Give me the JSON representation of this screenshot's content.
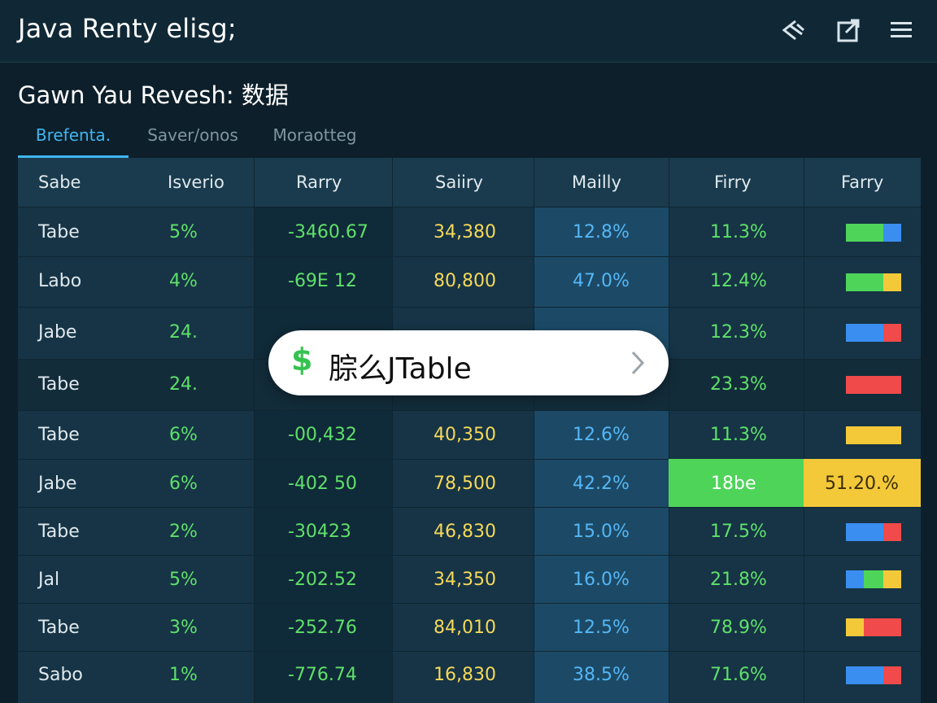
{
  "app": {
    "title": "Java Renty elisg;"
  },
  "topbar_icons": [
    "fast-forward-icon",
    "export-icon",
    "menu-icon"
  ],
  "page": {
    "title": "Gawn Yau Revesh: 数据"
  },
  "tabs": [
    {
      "label": "Brefenta.",
      "active": true
    },
    {
      "label": "Saver/onos",
      "active": false
    },
    {
      "label": "Moraotteg",
      "active": false
    }
  ],
  "table": {
    "headers": [
      "Sabe",
      "Isverio",
      "Rarry",
      "Saiiry",
      "Mailly",
      "Firry",
      "Farry"
    ],
    "rows": [
      {
        "c0": "Tabe",
        "c1": "5%",
        "c2": "-3460.67",
        "c3": "34,380",
        "c4": "12.8%",
        "c5": "11.3%"
      },
      {
        "c0": "Labo",
        "c1": "4%",
        "c2": "-69E 12",
        "c3": "80,800",
        "c4": "47.0%",
        "c5": "12.4%"
      },
      {
        "c0": "Jabe",
        "c1": "24.",
        "c2": "",
        "c3": "",
        "c4": "",
        "c5": "12.3%"
      },
      {
        "c0": "Tabe",
        "c1": "24.",
        "c2": "",
        "c3": "",
        "c4": "",
        "c5": "23.3%"
      },
      {
        "c0": "Tabe",
        "c1": "6%",
        "c2": "-00,432",
        "c3": "40,350",
        "c4": "12.6%",
        "c5": "11.3%"
      },
      {
        "c0": "Jabe",
        "c1": "6%",
        "c2": "-402 50",
        "c3": "78,500",
        "c4": "42.2%",
        "c5": "18be",
        "c6": "51.20.%"
      },
      {
        "c0": "Tabe",
        "c1": "2%",
        "c2": "-30423",
        "c3": "46,830",
        "c4": "15.0%",
        "c5": "17.5%"
      },
      {
        "c0": "Jal",
        "c1": "5%",
        "c2": "-202.52",
        "c3": "34,350",
        "c4": "16.0%",
        "c5": "21.8%"
      },
      {
        "c0": "Tabe",
        "c1": "3%",
        "c2": "-252.76",
        "c3": "84,010",
        "c4": "12.5%",
        "c5": "78.9%"
      },
      {
        "c0": "Sabo",
        "c1": "1%",
        "c2": "-776.74",
        "c3": "16,830",
        "c4": "38.5%",
        "c5": "71.6%"
      }
    ],
    "bar_colors": {
      "green": "#4fd45a",
      "blue": "#3a8ef0",
      "yellow": "#f3c93a",
      "red": "#f04a4a"
    }
  },
  "popup": {
    "icon": "dollar-icon",
    "text": "腙么JTable"
  }
}
